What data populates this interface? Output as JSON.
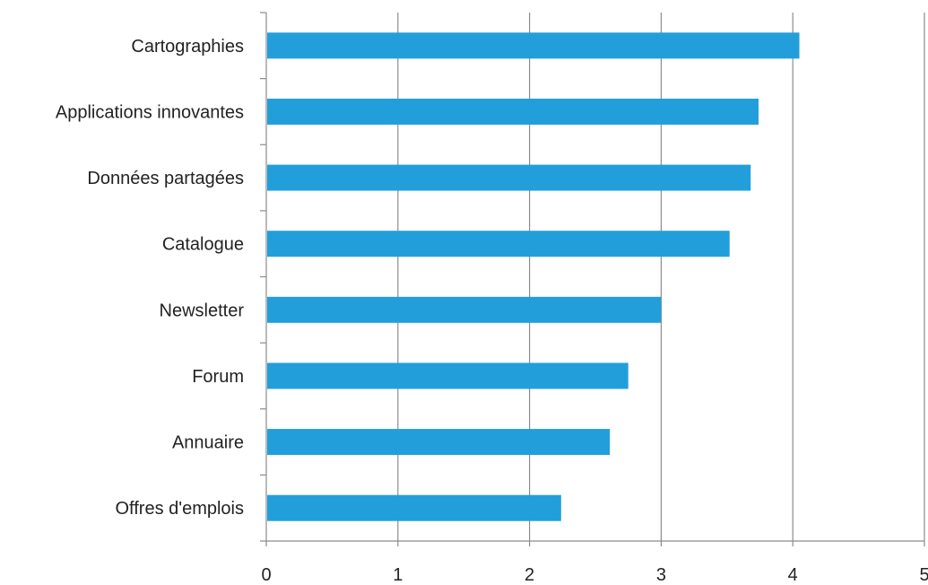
{
  "chart_data": {
    "type": "bar",
    "orientation": "horizontal",
    "title": "",
    "xlabel": "",
    "ylabel": "",
    "categories": [
      "Cartographies",
      "Applications innovantes",
      "Données partagées",
      "Catalogue",
      "Newsletter",
      "Forum",
      "Annuaire",
      "Offres d'emplois"
    ],
    "values": [
      4.05,
      3.74,
      3.68,
      3.52,
      3.0,
      2.75,
      2.61,
      2.24
    ],
    "xlim": [
      0,
      5
    ],
    "x_ticks": [
      "0",
      "1",
      "2",
      "3",
      "4",
      "5"
    ],
    "grid": "vertical",
    "legend": "none",
    "colors": {
      "bar": "#229fdb",
      "grid": "#8c8c8c",
      "axis": "#8c8c8c"
    }
  }
}
